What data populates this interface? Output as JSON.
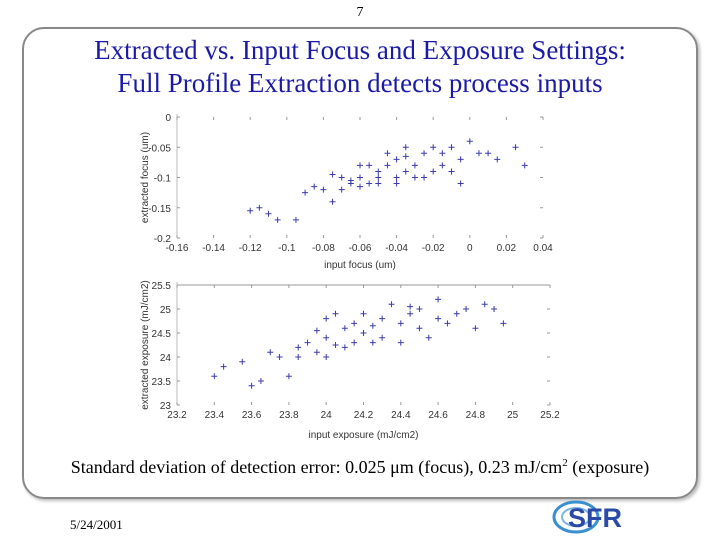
{
  "page": {
    "number": "7",
    "date": "5/24/2001"
  },
  "slide": {
    "title_line1": "Extracted vs. Input Focus and Exposure Settings:",
    "title_line2": "Full Profile Extraction detects process inputs",
    "caption_pre": "Standard deviation of detection error: 0.025 ",
    "caption_mu": "μ",
    "caption_mid": "m (focus), 0.23 mJ/cm",
    "caption_sup": "2",
    "caption_post": " (exposure)"
  },
  "logo": {
    "text": "SFR",
    "colors": {
      "blue": "#2a4aa8",
      "ring": "#3a8fd0"
    }
  },
  "colors": {
    "title": "#1a1aa6",
    "marker": "#3b3bb0",
    "marker_light": "#9a9ac8"
  },
  "chart_data": [
    {
      "type": "scatter",
      "xlabel": "input focus (um)",
      "ylabel": "extracted focus (um)",
      "xlim": [
        -0.16,
        0.04
      ],
      "ylim": [
        -0.2,
        0
      ],
      "x_ticks": [
        -0.16,
        -0.14,
        -0.12,
        -0.1,
        -0.08,
        -0.06,
        -0.04,
        -0.02,
        0,
        0.02,
        0.04
      ],
      "x_tick_labels": [
        "-0.16",
        "-0.14",
        "-0.12",
        "-0.1",
        "-0.08",
        "-0.06",
        "-0.04",
        "-0.02",
        "0",
        "0.02",
        "0.04"
      ],
      "y_ticks": [
        0,
        -0.05,
        -0.1,
        -0.15,
        -0.2
      ],
      "y_tick_labels": [
        "0",
        "-0.05",
        "-0.1",
        "-0.15",
        "-0.2"
      ],
      "grid": false,
      "points": [
        [
          -0.12,
          -0.155
        ],
        [
          -0.115,
          -0.15
        ],
        [
          -0.11,
          -0.16
        ],
        [
          -0.105,
          -0.17
        ],
        [
          -0.095,
          -0.17
        ],
        [
          -0.09,
          -0.125
        ],
        [
          -0.085,
          -0.115
        ],
        [
          -0.08,
          -0.12
        ],
        [
          -0.075,
          -0.14
        ],
        [
          -0.07,
          -0.1
        ],
        [
          -0.07,
          -0.12
        ],
        [
          -0.065,
          -0.11
        ],
        [
          -0.06,
          -0.1
        ],
        [
          -0.06,
          -0.08
        ],
        [
          -0.055,
          -0.11
        ],
        [
          -0.055,
          -0.08
        ],
        [
          -0.05,
          -0.11
        ],
        [
          -0.05,
          -0.1
        ],
        [
          -0.05,
          -0.09
        ],
        [
          -0.045,
          -0.08
        ],
        [
          -0.045,
          -0.06
        ],
        [
          -0.04,
          -0.1
        ],
        [
          -0.04,
          -0.07
        ],
        [
          -0.04,
          -0.11
        ],
        [
          -0.035,
          -0.05
        ],
        [
          -0.035,
          -0.09
        ],
        [
          -0.03,
          -0.1
        ],
        [
          -0.03,
          -0.08
        ],
        [
          -0.025,
          -0.06
        ],
        [
          -0.025,
          -0.1
        ],
        [
          -0.02,
          -0.05
        ],
        [
          -0.02,
          -0.09
        ],
        [
          -0.015,
          -0.08
        ],
        [
          -0.015,
          -0.06
        ],
        [
          -0.01,
          -0.05
        ],
        [
          -0.01,
          -0.09
        ],
        [
          -0.005,
          -0.11
        ],
        [
          0.0,
          -0.04
        ],
        [
          0.005,
          -0.06
        ],
        [
          0.01,
          -0.06
        ],
        [
          0.015,
          -0.07
        ],
        [
          0.025,
          -0.05
        ],
        [
          0.03,
          -0.08
        ],
        [
          -0.075,
          -0.095
        ],
        [
          -0.065,
          -0.105
        ],
        [
          -0.06,
          -0.115
        ],
        [
          -0.035,
          -0.065
        ],
        [
          -0.005,
          -0.07
        ]
      ]
    },
    {
      "type": "scatter",
      "xlabel": "input exposure (mJ/cm2)",
      "ylabel": "extracted exposure (mJ/cm2)",
      "xlim": [
        23.2,
        25.2
      ],
      "ylim": [
        23,
        25.5
      ],
      "x_ticks": [
        23.2,
        23.4,
        23.6,
        23.8,
        24,
        24.2,
        24.4,
        24.6,
        24.8,
        25,
        25.2
      ],
      "x_tick_labels": [
        "23.2",
        "23.4",
        "23.6",
        "23.8",
        "24",
        "24.2",
        "24.4",
        "24.6",
        "24.8",
        "25",
        "25.2"
      ],
      "y_ticks": [
        25.5,
        25,
        24.5,
        24,
        23.5,
        23
      ],
      "y_tick_labels": [
        "25.5",
        "25",
        "24.5",
        "24",
        "23.5",
        "23"
      ],
      "grid": false,
      "points": [
        [
          23.4,
          23.6
        ],
        [
          23.45,
          23.8
        ],
        [
          23.55,
          23.9
        ],
        [
          23.6,
          23.4
        ],
        [
          23.65,
          23.5
        ],
        [
          23.7,
          24.1
        ],
        [
          23.75,
          24.0
        ],
        [
          23.8,
          23.6
        ],
        [
          23.85,
          24.2
        ],
        [
          23.85,
          24.0
        ],
        [
          23.9,
          24.3
        ],
        [
          23.95,
          24.1
        ],
        [
          24.0,
          24.4
        ],
        [
          24.0,
          24.0
        ],
        [
          24.0,
          24.8
        ],
        [
          24.05,
          24.9
        ],
        [
          24.1,
          24.2
        ],
        [
          24.1,
          24.6
        ],
        [
          24.15,
          24.3
        ],
        [
          24.15,
          24.7
        ],
        [
          24.2,
          24.5
        ],
        [
          24.2,
          24.9
        ],
        [
          24.25,
          24.3
        ],
        [
          24.3,
          24.8
        ],
        [
          24.3,
          24.4
        ],
        [
          24.35,
          25.1
        ],
        [
          24.4,
          24.7
        ],
        [
          24.4,
          24.3
        ],
        [
          24.45,
          24.9
        ],
        [
          24.5,
          24.6
        ],
        [
          24.5,
          25.0
        ],
        [
          24.55,
          24.4
        ],
        [
          24.6,
          24.8
        ],
        [
          24.6,
          25.2
        ],
        [
          24.65,
          24.7
        ],
        [
          24.7,
          24.9
        ],
        [
          24.75,
          25.0
        ],
        [
          24.8,
          24.6
        ],
        [
          24.85,
          25.1
        ],
        [
          24.9,
          25.0
        ],
        [
          24.95,
          24.7
        ],
        [
          23.95,
          24.55
        ],
        [
          24.05,
          24.25
        ],
        [
          24.25,
          24.65
        ],
        [
          24.45,
          25.05
        ]
      ]
    }
  ]
}
